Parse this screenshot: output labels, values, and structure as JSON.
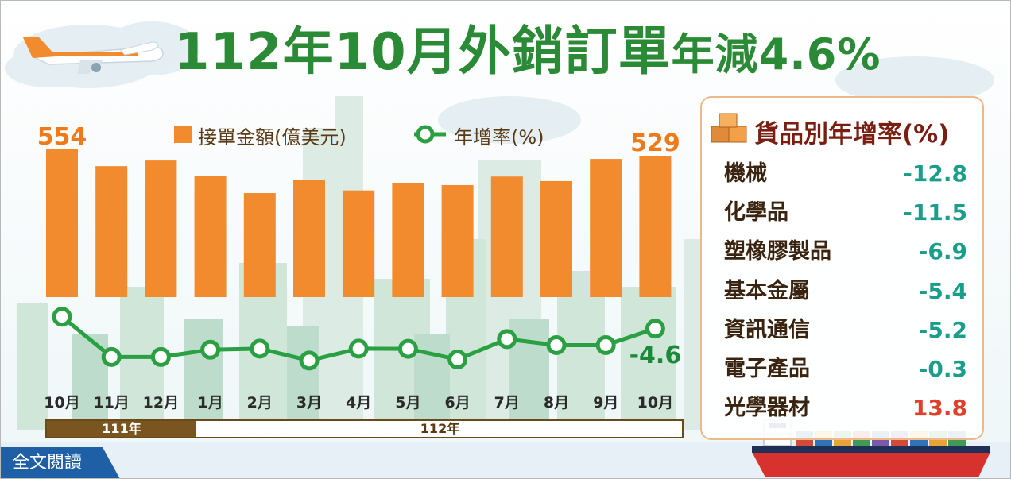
{
  "title": {
    "part1": "112年10月",
    "part2": "外銷訂單",
    "part3": "年減4.6%"
  },
  "legend": {
    "bar_label": "接單金額(億美元)",
    "line_label": "年增率(%)"
  },
  "year_labels": {
    "y111": "111年",
    "y112": "112年"
  },
  "read_button": "全文閱讀",
  "panel": {
    "title": "貨品別年增率(%)",
    "rows": [
      {
        "category": "機械",
        "value": "-12.8"
      },
      {
        "category": "化學品",
        "value": "-11.5"
      },
      {
        "category": "塑橡膠製品",
        "value": "-6.9"
      },
      {
        "category": "基本金屬",
        "value": "-5.4"
      },
      {
        "category": "資訊通信",
        "value": "-5.2"
      },
      {
        "category": "電子產品",
        "value": "-0.3"
      },
      {
        "category": "光學器材",
        "value": "13.8"
      }
    ]
  },
  "colors": {
    "bar": "#f28a2e",
    "line": "#2aa043",
    "title": "#2a8a35",
    "negative": "#1a9e8a",
    "positive": "#e0402a",
    "year111": "#7a5520",
    "button": "#1f5fa6"
  },
  "chart_data": {
    "type": "bar",
    "categories": [
      "10月",
      "11月",
      "12月",
      "1月",
      "2月",
      "3月",
      "4月",
      "5月",
      "6月",
      "7月",
      "8月",
      "9月",
      "10月"
    ],
    "series": [
      {
        "name": "接單金額(億美元)",
        "type": "bar",
        "values": [
          554,
          491,
          512,
          455,
          390,
          440,
          400,
          428,
          420,
          452,
          435,
          518,
          529
        ]
      },
      {
        "name": "年增率(%)",
        "type": "line",
        "values": [
          3.1,
          -23.0,
          -23.0,
          -18.3,
          -17.6,
          -25.3,
          -17.6,
          -17.7,
          -24.6,
          -11.4,
          -15.3,
          -15.3,
          -4.6
        ]
      }
    ],
    "data_labels": {
      "first": "554",
      "last": "529",
      "line_last": "-4.6"
    },
    "ylim_bar": [
      0,
      600
    ],
    "ylim_line": [
      -30,
      5
    ],
    "legend": "top",
    "grid": false
  }
}
